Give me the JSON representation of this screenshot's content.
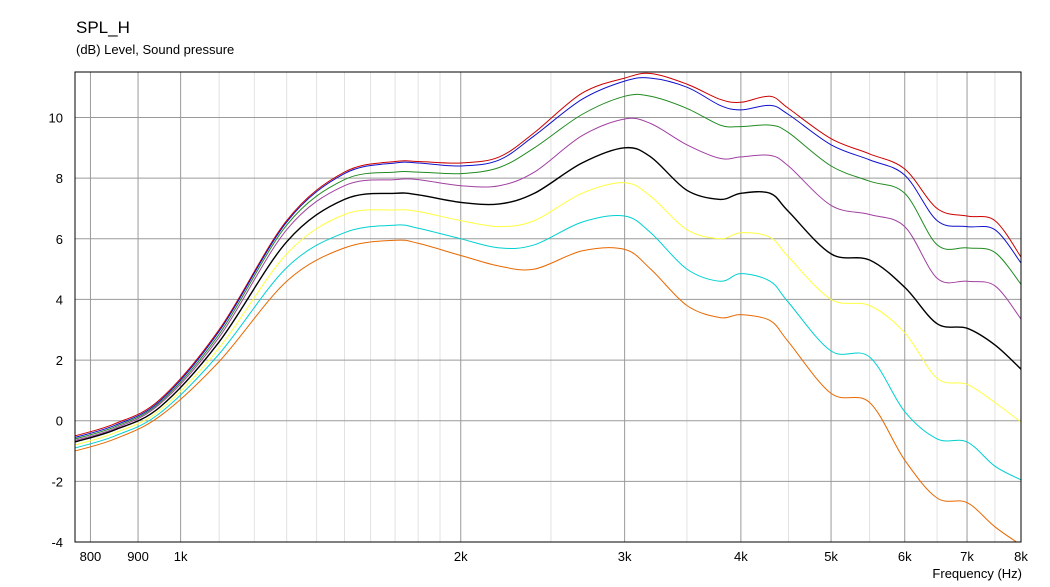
{
  "title": "SPL_H",
  "subtitle": "(dB)  Level, Sound pressure",
  "xlabel": "Frequency  (Hz)",
  "chart_data": {
    "type": "line",
    "title": "SPL_H",
    "ylabel": "(dB)  Level, Sound pressure",
    "xlabel": "Frequency  (Hz)",
    "xscale": "log",
    "xlim": [
      770,
      8000
    ],
    "ylim": [
      -4,
      11.5
    ],
    "grid": true,
    "legend": "none",
    "xticks": [
      {
        "value": 800,
        "label": "800"
      },
      {
        "value": 900,
        "label": "900"
      },
      {
        "value": 1000,
        "label": "1k"
      },
      {
        "value": 2000,
        "label": "2k"
      },
      {
        "value": 3000,
        "label": "3k"
      },
      {
        "value": 4000,
        "label": "4k"
      },
      {
        "value": 5000,
        "label": "5k"
      },
      {
        "value": 6000,
        "label": "6k"
      },
      {
        "value": 7000,
        "label": "7k"
      },
      {
        "value": 8000,
        "label": "8k"
      }
    ],
    "yticks": [
      {
        "value": 10,
        "label": "10"
      },
      {
        "value": 8,
        "label": "8"
      },
      {
        "value": 6,
        "label": "6"
      },
      {
        "value": 4,
        "label": "4"
      },
      {
        "value": 2,
        "label": "2"
      },
      {
        "value": 0,
        "label": "0"
      },
      {
        "value": -2,
        "label": "-2"
      },
      {
        "value": -4,
        "label": "-4"
      }
    ],
    "series": [
      {
        "color": "#cc0000",
        "x": [
          770,
          850,
          950,
          1100,
          1300,
          1500,
          1700,
          1800,
          2000,
          2200,
          2400,
          2700,
          3000,
          3200,
          3500,
          3800,
          4000,
          4300,
          4500,
          5000,
          5500,
          6000,
          6500,
          7000,
          7500,
          8000
        ],
        "y": [
          -0.5,
          -0.1,
          0.7,
          3.0,
          6.6,
          8.2,
          8.55,
          8.55,
          8.5,
          8.7,
          9.5,
          10.8,
          11.3,
          11.45,
          11.1,
          10.6,
          10.5,
          10.7,
          10.3,
          9.3,
          8.8,
          8.3,
          7.0,
          6.75,
          6.6,
          5.4
        ]
      },
      {
        "color": "#1010cc",
        "x": [
          770,
          850,
          950,
          1100,
          1300,
          1500,
          1700,
          1800,
          2000,
          2200,
          2400,
          2700,
          3000,
          3200,
          3500,
          3800,
          4000,
          4300,
          4500,
          5000,
          5500,
          6000,
          6500,
          7000,
          7500,
          8000
        ],
        "y": [
          -0.55,
          -0.15,
          0.65,
          2.95,
          6.55,
          8.15,
          8.5,
          8.5,
          8.4,
          8.6,
          9.4,
          10.6,
          11.2,
          11.3,
          11.0,
          10.4,
          10.25,
          10.4,
          10.1,
          9.1,
          8.6,
          8.1,
          6.6,
          6.4,
          6.3,
          5.2
        ]
      },
      {
        "color": "#228b22",
        "x": [
          770,
          850,
          950,
          1100,
          1300,
          1500,
          1700,
          1800,
          2000,
          2200,
          2400,
          2700,
          3000,
          3200,
          3500,
          3800,
          4000,
          4300,
          4500,
          5000,
          5500,
          6000,
          6500,
          7000,
          7500,
          8000
        ],
        "y": [
          -0.6,
          -0.2,
          0.6,
          2.85,
          6.45,
          7.95,
          8.2,
          8.2,
          8.15,
          8.35,
          9.0,
          10.1,
          10.7,
          10.7,
          10.3,
          9.75,
          9.7,
          9.75,
          9.5,
          8.4,
          7.9,
          7.5,
          5.8,
          5.7,
          5.55,
          4.5
        ]
      },
      {
        "color": "#a040a0",
        "x": [
          770,
          850,
          950,
          1100,
          1300,
          1500,
          1700,
          1800,
          2000,
          2200,
          2400,
          2700,
          3000,
          3200,
          3500,
          3800,
          4000,
          4300,
          4500,
          5000,
          5500,
          6000,
          6500,
          7000,
          7500,
          8000
        ],
        "y": [
          -0.65,
          -0.25,
          0.55,
          2.75,
          6.3,
          7.75,
          7.95,
          7.95,
          7.75,
          7.75,
          8.2,
          9.4,
          9.95,
          9.8,
          9.1,
          8.65,
          8.7,
          8.75,
          8.4,
          7.1,
          6.8,
          6.4,
          4.7,
          4.6,
          4.45,
          3.35
        ]
      },
      {
        "color": "#000000",
        "x": [
          770,
          850,
          950,
          1100,
          1300,
          1500,
          1700,
          1800,
          2000,
          2200,
          2400,
          2700,
          3000,
          3200,
          3500,
          3800,
          4000,
          4300,
          4500,
          5000,
          5500,
          6000,
          6500,
          7000,
          7500,
          8000
        ],
        "y": [
          -0.7,
          -0.3,
          0.45,
          2.6,
          5.9,
          7.3,
          7.5,
          7.45,
          7.2,
          7.15,
          7.5,
          8.5,
          9.0,
          8.7,
          7.6,
          7.3,
          7.5,
          7.5,
          6.9,
          5.5,
          5.3,
          4.4,
          3.2,
          3.05,
          2.5,
          1.7
        ]
      },
      {
        "color": "#ffff40",
        "x": [
          770,
          850,
          950,
          1100,
          1300,
          1500,
          1700,
          1800,
          2000,
          2200,
          2400,
          2700,
          3000,
          3200,
          3500,
          3800,
          4000,
          4300,
          4500,
          5000,
          5500,
          6000,
          6500,
          7000,
          7500,
          8000
        ],
        "y": [
          -0.8,
          -0.4,
          0.35,
          2.4,
          5.5,
          6.8,
          6.95,
          6.9,
          6.6,
          6.4,
          6.6,
          7.5,
          7.85,
          7.4,
          6.3,
          6.0,
          6.2,
          6.05,
          5.4,
          4.0,
          3.8,
          2.9,
          1.4,
          1.2,
          0.6,
          -0.05
        ]
      },
      {
        "color": "#00d0d0",
        "x": [
          770,
          850,
          950,
          1100,
          1300,
          1500,
          1700,
          1800,
          2000,
          2200,
          2400,
          2700,
          3000,
          3200,
          3500,
          3800,
          4000,
          4300,
          4500,
          5000,
          5500,
          6000,
          6500,
          7000,
          7500,
          8000
        ],
        "y": [
          -0.9,
          -0.5,
          0.25,
          2.2,
          5.05,
          6.2,
          6.45,
          6.35,
          6.0,
          5.7,
          5.8,
          6.55,
          6.75,
          6.2,
          5.0,
          4.6,
          4.85,
          4.6,
          3.9,
          2.3,
          2.1,
          0.3,
          -0.6,
          -0.7,
          -1.5,
          -1.95
        ]
      },
      {
        "color": "#e86800",
        "x": [
          770,
          850,
          950,
          1100,
          1300,
          1500,
          1700,
          1800,
          2000,
          2200,
          2400,
          2700,
          3000,
          3200,
          3500,
          3800,
          4000,
          4300,
          4500,
          5000,
          5500,
          6000,
          6500,
          7000,
          7500,
          8000
        ],
        "y": [
          -1.0,
          -0.6,
          0.15,
          1.95,
          4.6,
          5.7,
          5.95,
          5.85,
          5.45,
          5.1,
          5.0,
          5.6,
          5.65,
          5.0,
          3.8,
          3.4,
          3.5,
          3.3,
          2.6,
          0.9,
          0.6,
          -1.3,
          -2.55,
          -2.7,
          -3.5,
          -4.1
        ]
      }
    ]
  }
}
